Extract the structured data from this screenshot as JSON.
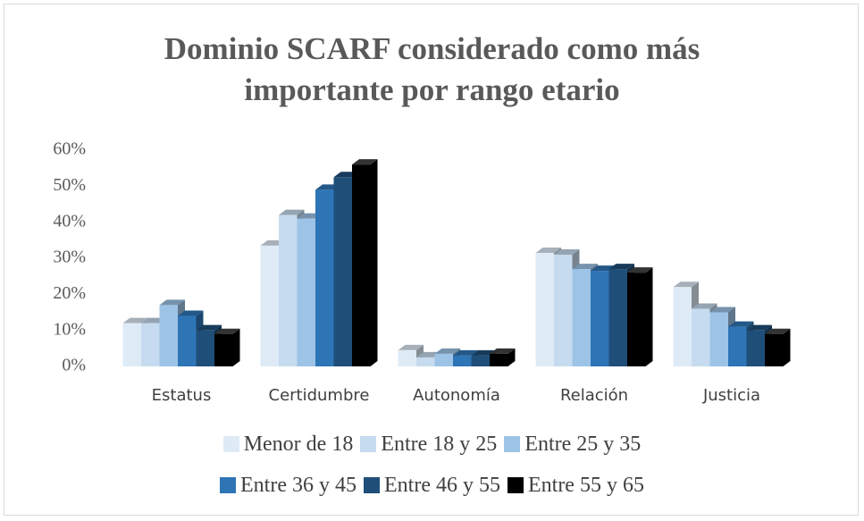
{
  "chart_data": {
    "type": "bar3d",
    "title": "Dominio SCARF considerado como más importante por rango etario",
    "categories": [
      "Estatus",
      "Certidumbre",
      "Autonomía",
      "Relación",
      "Justicia"
    ],
    "series": [
      {
        "name": "Menor de 18",
        "color": "#deebf7",
        "values": [
          12,
          33.5,
          4.5,
          31.5,
          22
        ]
      },
      {
        "name": "Entre 18 y 25",
        "color": "#c6dbef",
        "values": [
          12,
          42,
          2.5,
          31,
          16
        ]
      },
      {
        "name": "Entre 25 y 35",
        "color": "#9dc3e6",
        "values": [
          17,
          41,
          3.5,
          27,
          15
        ]
      },
      {
        "name": "Entre 36 y 45",
        "color": "#2e75b6",
        "values": [
          14,
          49,
          3,
          26.5,
          11
        ]
      },
      {
        "name": "Entre 46 y 55",
        "color": "#1f4e79",
        "values": [
          10,
          52.5,
          3,
          27,
          10
        ]
      },
      {
        "name": "Entre 55 y 65",
        "color": "#000000",
        "values": [
          9,
          56,
          3.5,
          26,
          9
        ]
      }
    ],
    "ylim": [
      0,
      60
    ],
    "yticks": [
      {
        "value": 0,
        "label": "0%"
      },
      {
        "value": 10,
        "label": "10%"
      },
      {
        "value": 20,
        "label": "20%"
      },
      {
        "value": 30,
        "label": "30%"
      },
      {
        "value": 40,
        "label": "40%"
      },
      {
        "value": 50,
        "label": "50%"
      },
      {
        "value": 60,
        "label": "60%"
      }
    ],
    "grid": false,
    "legend": "bottom"
  }
}
